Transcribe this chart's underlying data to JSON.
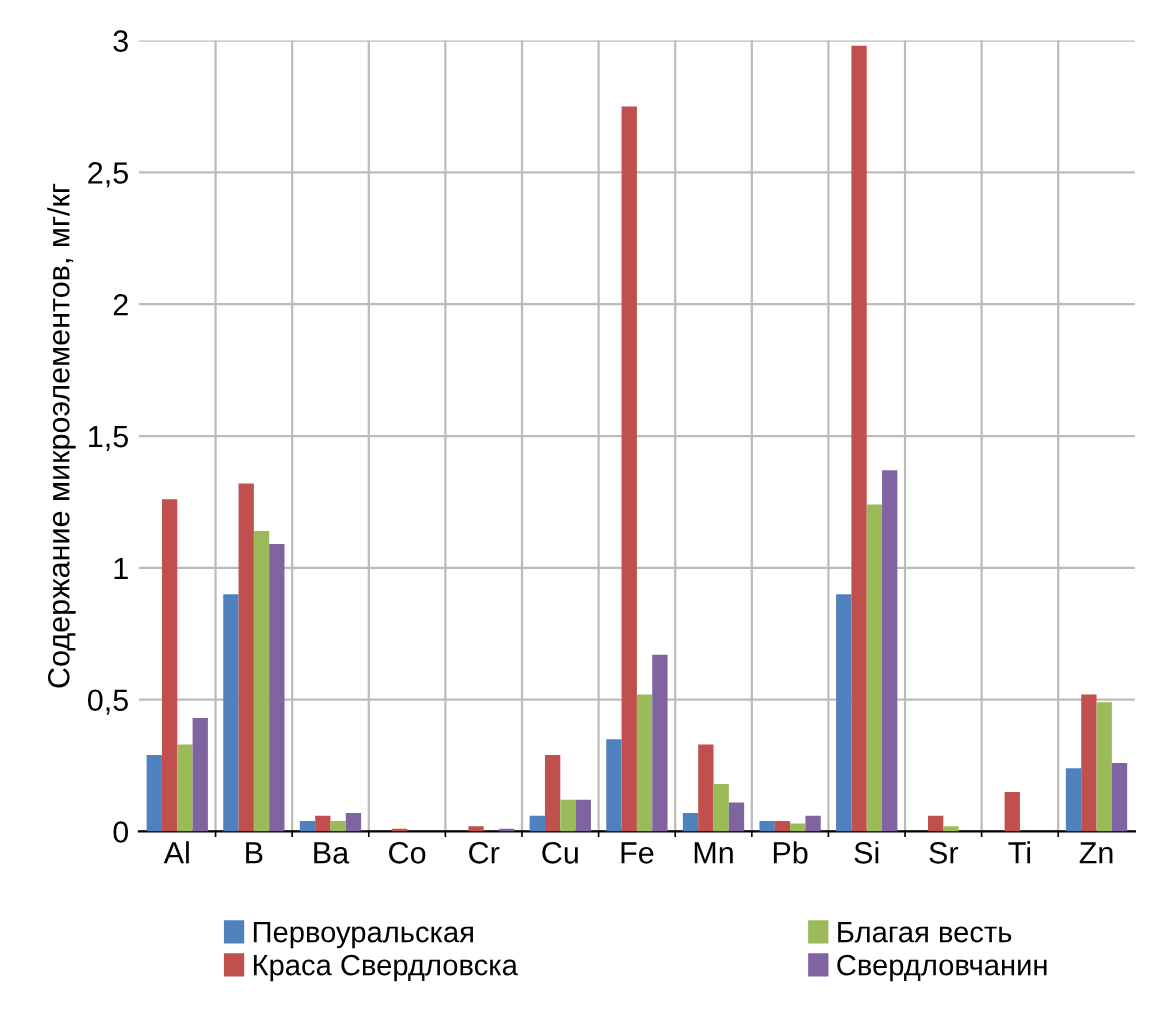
{
  "chart_data": {
    "type": "bar",
    "ylabel": "Содержание микроэлементов, мг/кг",
    "categories": [
      "Al",
      "B",
      "Ba",
      "Co",
      "Cr",
      "Cu",
      "Fe",
      "Mn",
      "Pb",
      "Si",
      "Sr",
      "Ti",
      "Zn"
    ],
    "series": [
      {
        "name": "Первоуральская",
        "color": "#4f81bd",
        "values": [
          0.29,
          0.9,
          0.04,
          0,
          0,
          0.06,
          0.35,
          0.07,
          0.04,
          0.9,
          0,
          0,
          0.24
        ]
      },
      {
        "name": "Краса Свердловска",
        "color": "#c0504d",
        "values": [
          1.26,
          1.32,
          0.06,
          0.01,
          0.02,
          0.29,
          2.75,
          0.33,
          0.04,
          2.98,
          0.06,
          0.15,
          0.52
        ]
      },
      {
        "name": "Благая весть",
        "color": "#9bbb59",
        "values": [
          0.33,
          1.14,
          0.04,
          0,
          0,
          0.12,
          0.52,
          0.18,
          0.03,
          1.24,
          0.02,
          0,
          0.49
        ]
      },
      {
        "name": "Свердловчанин",
        "color": "#8064a2",
        "values": [
          0.43,
          1.09,
          0.07,
          0,
          0.01,
          0.12,
          0.67,
          0.11,
          0.06,
          1.37,
          0,
          0,
          0.26
        ]
      }
    ],
    "ylim": [
      0,
      3
    ],
    "yticks": [
      0,
      {
        "value": 0.5,
        "label": "0,5"
      },
      1,
      {
        "value": 1.5,
        "label": "1,5"
      },
      2,
      {
        "value": 2.5,
        "label": "2,5"
      },
      3
    ],
    "grid": true,
    "legend": "bottom"
  }
}
